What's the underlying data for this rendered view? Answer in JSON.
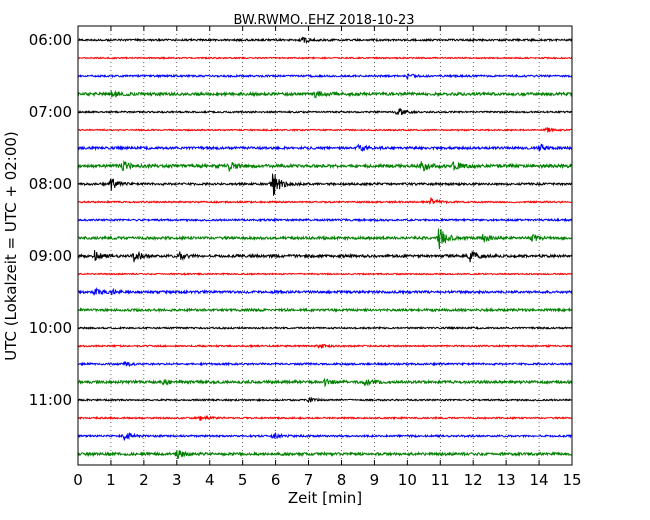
{
  "chart_data": {
    "type": "line",
    "title": "BW.RWMO..EHZ 2018-10-23",
    "xlabel": "Zeit  [min]",
    "ylabel": "UTC (Lokalzeit = UTC + 02:00)",
    "xlim": [
      0,
      15
    ],
    "x_ticks": [
      "0",
      "1",
      "2",
      "3",
      "4",
      "5",
      "6",
      "7",
      "8",
      "9",
      "10",
      "11",
      "12",
      "13",
      "14",
      "15"
    ],
    "y_ticks": [
      "06:00",
      "07:00",
      "08:00",
      "09:00",
      "10:00",
      "11:00"
    ],
    "trace_minutes": 15,
    "grid": "vertical dotted",
    "series_colors": [
      "#000000",
      "#ff0000",
      "#0000ff",
      "#008000"
    ],
    "series": [
      {
        "start": "06:00",
        "color": "#000000",
        "noise": 0.35,
        "events": [
          {
            "t": 6.8,
            "amp": 1.0
          }
        ]
      },
      {
        "start": "06:15",
        "color": "#ff0000",
        "noise": 0.25,
        "events": []
      },
      {
        "start": "06:30",
        "color": "#0000ff",
        "noise": 0.35,
        "events": [
          {
            "t": 10.0,
            "amp": 0.8
          }
        ]
      },
      {
        "start": "06:45",
        "color": "#008000",
        "noise": 0.55,
        "events": [
          {
            "t": 1.0,
            "amp": 1.0
          },
          {
            "t": 7.2,
            "amp": 0.8
          }
        ]
      },
      {
        "start": "07:00",
        "color": "#000000",
        "noise": 0.3,
        "events": [
          {
            "t": 9.7,
            "amp": 1.6
          }
        ]
      },
      {
        "start": "07:15",
        "color": "#ff0000",
        "noise": 0.25,
        "events": [
          {
            "t": 14.2,
            "amp": 0.9
          }
        ]
      },
      {
        "start": "07:30",
        "color": "#0000ff",
        "noise": 0.45,
        "events": [
          {
            "t": 8.5,
            "amp": 1.0
          },
          {
            "t": 14.0,
            "amp": 1.2
          }
        ]
      },
      {
        "start": "07:45",
        "color": "#008000",
        "noise": 0.6,
        "events": [
          {
            "t": 1.3,
            "amp": 1.8
          },
          {
            "t": 4.6,
            "amp": 1.5
          },
          {
            "t": 10.4,
            "amp": 1.8
          },
          {
            "t": 11.4,
            "amp": 1.6
          }
        ]
      },
      {
        "start": "08:00",
        "color": "#000000",
        "noise": 0.4,
        "events": [
          {
            "t": 1.0,
            "amp": 2.0
          },
          {
            "t": 5.9,
            "amp": 4.5
          }
        ]
      },
      {
        "start": "08:15",
        "color": "#ff0000",
        "noise": 0.3,
        "events": [
          {
            "t": 10.7,
            "amp": 1.2
          }
        ]
      },
      {
        "start": "08:30",
        "color": "#0000ff",
        "noise": 0.35,
        "events": []
      },
      {
        "start": "08:45",
        "color": "#008000",
        "noise": 0.5,
        "events": [
          {
            "t": 10.95,
            "amp": 4.0
          },
          {
            "t": 12.3,
            "amp": 1.2
          },
          {
            "t": 13.8,
            "amp": 1.1
          }
        ]
      },
      {
        "start": "09:00",
        "color": "#000000",
        "noise": 0.5,
        "events": [
          {
            "t": 0.5,
            "amp": 1.6
          },
          {
            "t": 1.7,
            "amp": 1.6
          },
          {
            "t": 3.1,
            "amp": 1.3
          },
          {
            "t": 11.9,
            "amp": 1.8
          }
        ]
      },
      {
        "start": "09:15",
        "color": "#ff0000",
        "noise": 0.25,
        "events": []
      },
      {
        "start": "09:30",
        "color": "#0000ff",
        "noise": 0.45,
        "events": [
          {
            "t": 0.5,
            "amp": 1.0
          },
          {
            "t": 1.0,
            "amp": 0.9
          }
        ]
      },
      {
        "start": "09:45",
        "color": "#008000",
        "noise": 0.45,
        "events": []
      },
      {
        "start": "10:00",
        "color": "#000000",
        "noise": 0.3,
        "events": []
      },
      {
        "start": "10:15",
        "color": "#ff0000",
        "noise": 0.3,
        "events": [
          {
            "t": 7.3,
            "amp": 0.7
          }
        ]
      },
      {
        "start": "10:30",
        "color": "#0000ff",
        "noise": 0.35,
        "events": [
          {
            "t": 1.4,
            "amp": 0.8
          }
        ]
      },
      {
        "start": "10:45",
        "color": "#008000",
        "noise": 0.5,
        "events": [
          {
            "t": 2.5,
            "amp": 1.0
          },
          {
            "t": 7.5,
            "amp": 1.0
          },
          {
            "t": 8.7,
            "amp": 0.9
          }
        ]
      },
      {
        "start": "11:00",
        "color": "#000000",
        "noise": 0.3,
        "events": [
          {
            "t": 7.0,
            "amp": 0.6
          }
        ]
      },
      {
        "start": "11:15",
        "color": "#ff0000",
        "noise": 0.3,
        "events": [
          {
            "t": 3.7,
            "amp": 0.7
          }
        ]
      },
      {
        "start": "11:30",
        "color": "#0000ff",
        "noise": 0.35,
        "events": [
          {
            "t": 1.4,
            "amp": 1.3
          },
          {
            "t": 5.9,
            "amp": 1.0
          }
        ]
      },
      {
        "start": "11:45",
        "color": "#008000",
        "noise": 0.5,
        "events": [
          {
            "t": 3.0,
            "amp": 1.3
          }
        ]
      }
    ]
  }
}
